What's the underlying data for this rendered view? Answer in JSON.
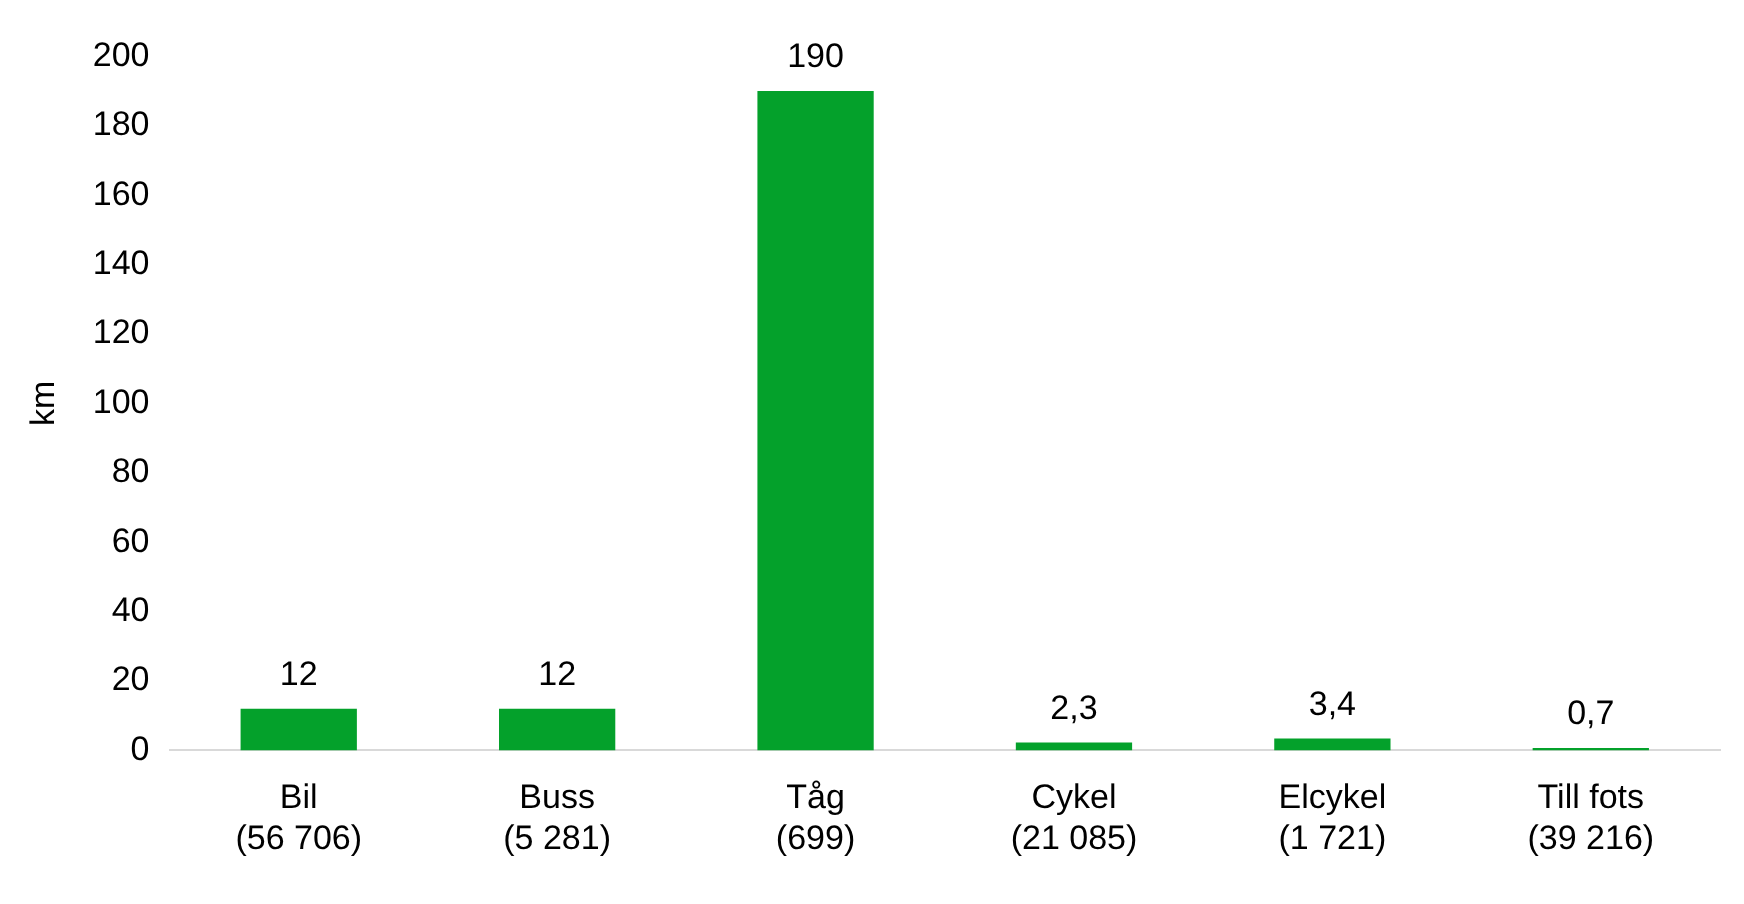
{
  "chart_data": {
    "type": "bar",
    "ylabel": "km",
    "categories": [
      "Bil\n(56 706)",
      "Buss\n(5 281)",
      "Tåg\n(699)",
      "Cykel\n(21 085)",
      "Elcykel\n(1 721)",
      "Till fots\n(39 216)"
    ],
    "values": [
      12,
      12,
      190,
      2.3,
      3.4,
      0.7
    ],
    "value_labels": [
      "12",
      "12",
      "190",
      "2,3",
      "3,4",
      "0,7"
    ],
    "color": "#04a12b",
    "ylim": [
      0,
      200
    ],
    "yticks": [
      0,
      20,
      40,
      60,
      80,
      100,
      120,
      140,
      160,
      180,
      200
    ],
    "grid": false,
    "legend": false
  }
}
